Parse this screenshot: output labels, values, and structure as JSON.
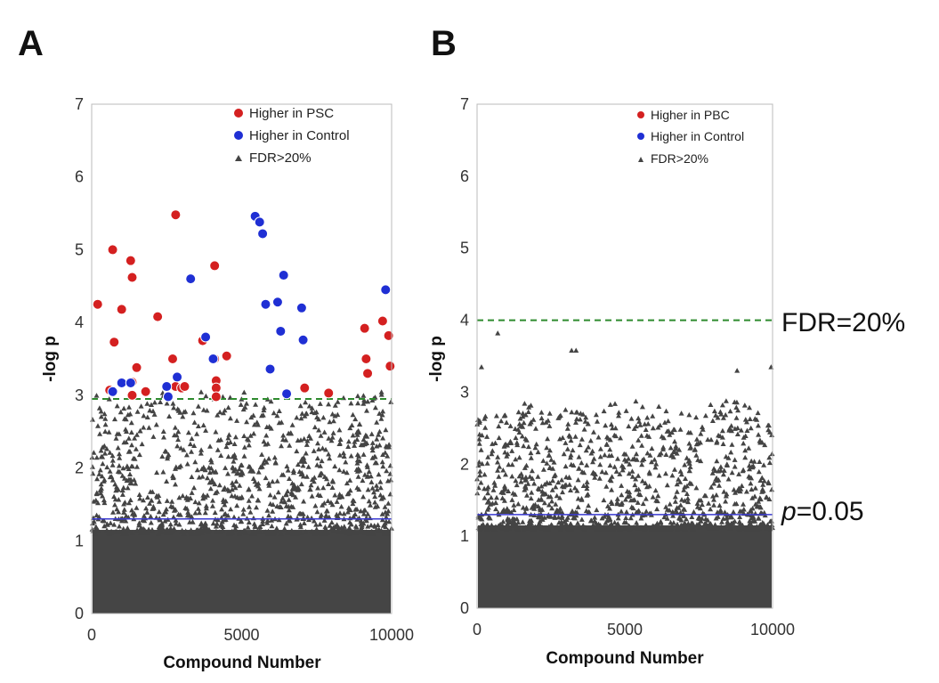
{
  "chart_data": [
    {
      "type": "scatter",
      "panel_label": "A",
      "xlabel": "Compound Number",
      "ylabel": "-log p",
      "xlim": [
        0,
        10000
      ],
      "ylim": [
        0,
        7
      ],
      "xticks": [
        "0",
        "5000",
        "10000"
      ],
      "yticks": [
        "0",
        "1",
        "2",
        "3",
        "4",
        "5",
        "6",
        "7"
      ],
      "thresholds": {
        "fdr": 2.95,
        "p05": 1.3
      },
      "legend": [
        {
          "label": "Higher in PSC",
          "color": "#d42020",
          "marker": "circle"
        },
        {
          "label": "Higher in Control",
          "color": "#1f2fd4",
          "marker": "circle"
        },
        {
          "label": "FDR>20%",
          "color": "#444444",
          "marker": "triangle"
        }
      ],
      "series": [
        {
          "name": "Higher in PSC",
          "x": [
            200,
            600,
            700,
            750,
            1000,
            1300,
            1350,
            1350,
            1350,
            1500,
            1800,
            2200,
            2800,
            2700,
            2800,
            3000,
            3100,
            3700,
            4100,
            4100,
            4150,
            4150,
            4150,
            4500,
            7100,
            7900,
            9100,
            9150,
            9200,
            9700,
            9900,
            9950
          ],
          "y": [
            4.25,
            3.07,
            5.0,
            3.73,
            4.18,
            4.85,
            4.62,
            3.18,
            3.0,
            3.38,
            3.05,
            4.08,
            5.48,
            3.5,
            3.12,
            3.1,
            3.12,
            3.75,
            4.78,
            3.5,
            3.2,
            3.1,
            2.98,
            3.54,
            3.1,
            3.03,
            3.92,
            3.5,
            3.3,
            4.02,
            3.82,
            3.4
          ]
        },
        {
          "name": "Higher in Control",
          "x": [
            700,
            1000,
            1300,
            2500,
            2550,
            2850,
            3300,
            3800,
            4050,
            5450,
            5600,
            5700,
            5800,
            5950,
            6200,
            6300,
            6400,
            6500,
            7000,
            7050,
            9800
          ],
          "y": [
            3.05,
            3.17,
            3.17,
            3.12,
            2.98,
            3.25,
            4.6,
            3.8,
            3.5,
            5.46,
            5.38,
            5.22,
            4.25,
            3.36,
            4.28,
            3.88,
            4.65,
            3.02,
            4.2,
            3.76,
            4.45
          ]
        }
      ]
    },
    {
      "type": "scatter",
      "panel_label": "B",
      "xlabel": "Compound Number",
      "ylabel": "-log p",
      "xlim": [
        0,
        10000
      ],
      "ylim": [
        0,
        7
      ],
      "xticks": [
        "0",
        "5000",
        "10000"
      ],
      "yticks": [
        "0",
        "1",
        "2",
        "3",
        "4",
        "5",
        "6",
        "7"
      ],
      "thresholds": {
        "fdr": 4.0,
        "p05": 1.3
      },
      "legend": [
        {
          "label": "Higher in PBC",
          "color": "#d42020",
          "marker": "circle"
        },
        {
          "label": "Higher in Control",
          "color": "#1f2fd4",
          "marker": "circle"
        },
        {
          "label": "FDR>20%",
          "color": "#444444",
          "marker": "triangle"
        }
      ],
      "annotations": {
        "fdr_label": "FDR=20%",
        "p_italic": "p",
        "p_value": "=0.05"
      },
      "series": [
        {
          "name": "Higher in PBC",
          "x": [],
          "y": []
        },
        {
          "name": "Higher in Control",
          "x": [],
          "y": []
        },
        {
          "name": "FDR>20% (top points)",
          "x": [
            150,
            700,
            3200,
            3350,
            8800,
            9950
          ],
          "y": [
            3.35,
            3.82,
            3.58,
            3.58,
            3.3,
            3.35
          ]
        }
      ]
    }
  ]
}
